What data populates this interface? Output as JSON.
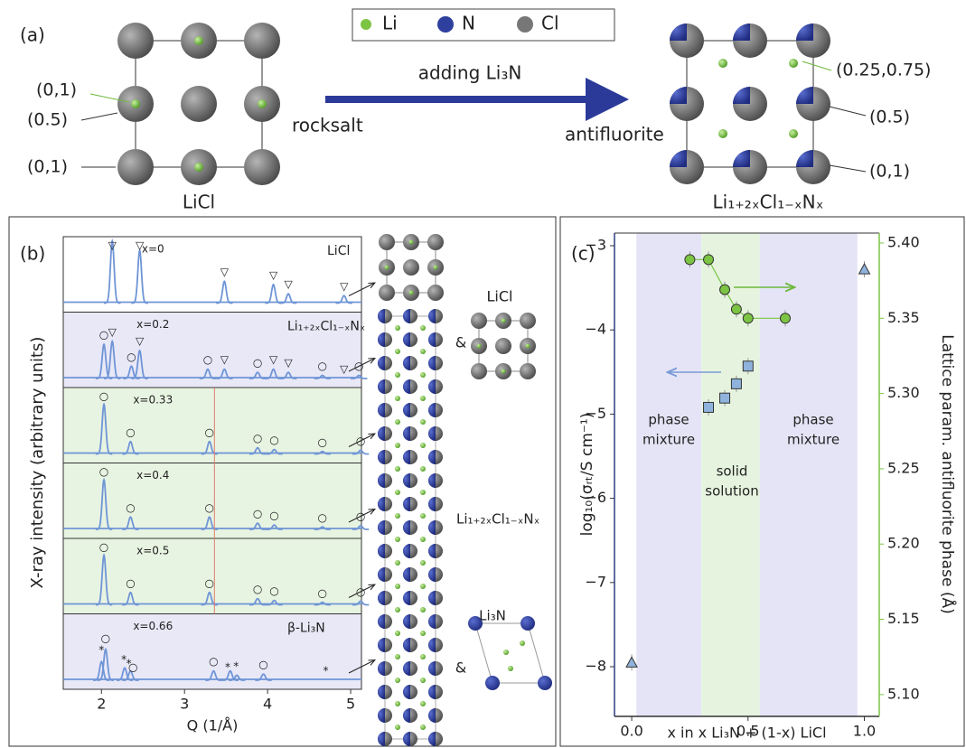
{
  "panel_labels": [
    "(a)",
    "(b)",
    "(c)"
  ],
  "diagram": {
    "legend": [
      {
        "name": "Li",
        "color": "#7cc444"
      },
      {
        "name": "N",
        "color": "#2e3f9e"
      },
      {
        "name": "Cl",
        "color": "#777777"
      }
    ],
    "arrow_label": "adding Li₃N",
    "left": {
      "phase": "rocksalt",
      "name": "LiCl",
      "site_labels": [
        "(0,1)",
        "(0.5)",
        "(0,1)"
      ]
    },
    "right": {
      "phase": "antifluorite",
      "name": "Li₁₊₂ₓCl₁₋ₓNₓ",
      "site_labels": [
        "(0.25,0.75)",
        "(0.5)",
        "(0,1)"
      ]
    },
    "structure_labels": [
      "LiCl",
      "&",
      "Li₁₊₂ₓCl₁₋ₓNₓ",
      "Li₃N",
      "&"
    ]
  },
  "chart_data": [
    {
      "type": "xrd",
      "x_label": "Q (1/Å)",
      "y_label": "X-ray intensity (arbitrary units)",
      "xlim": [
        1.54,
        5.13
      ],
      "xticks": [
        2,
        3,
        4,
        5
      ],
      "ylim": [
        0,
        1.1
      ],
      "color": "#6f95d6",
      "ref_line": 3.36,
      "ref_color": "#e07b6a",
      "panels": [
        {
          "label": "x=0",
          "phase": "LiCl",
          "background": "#ffffff",
          "peaks": {
            "q": [
              2.13,
              2.46,
              3.48,
              4.07,
              4.25,
              4.92
            ],
            "heights": [
              1.0,
              0.85,
              0.35,
              0.3,
              0.15,
              0.12
            ]
          },
          "markers": {
            "q": [
              2.13,
              2.46,
              3.48,
              4.07,
              4.25,
              4.92
            ],
            "symbols": [
              "▽",
              "▽",
              "▽",
              "▽",
              "▽",
              "▽"
            ]
          }
        },
        {
          "label": "x=0.2",
          "phase": "Li₁₊₂ₓCl₁₋ₓNₓ",
          "background": "#e8e8f7",
          "peaks": {
            "q": [
              2.03,
              2.13,
              2.36,
              2.46,
              3.28,
              3.48,
              3.88,
              4.07,
              4.25,
              4.66,
              5.1
            ],
            "heights": [
              0.55,
              0.6,
              0.2,
              0.45,
              0.15,
              0.15,
              0.1,
              0.15,
              0.1,
              0.05,
              0.05
            ]
          },
          "markers": {
            "q": [
              2.03,
              2.13,
              2.36,
              2.46,
              3.28,
              3.48,
              3.88,
              4.07,
              4.25,
              4.66,
              4.92,
              5.1
            ],
            "symbols": [
              "○",
              "▽",
              "○",
              "▽",
              "○",
              "▽",
              "○",
              "▽",
              "▽",
              "○",
              "▽",
              "○"
            ]
          }
        },
        {
          "label": "x=0.33",
          "background": "#e8f4e2",
          "peaks": {
            "q": [
              2.03,
              2.35,
              3.3,
              3.88,
              4.08,
              4.66,
              5.12
            ],
            "heights": [
              0.8,
              0.2,
              0.2,
              0.1,
              0.07,
              0.04,
              0.06
            ]
          },
          "markers": {
            "q": [
              2.03,
              2.35,
              3.3,
              3.88,
              4.08,
              4.66,
              5.12
            ],
            "symbols": [
              "○",
              "○",
              "○",
              "○",
              "○",
              "○",
              "○"
            ]
          }
        },
        {
          "label": "x=0.4",
          "background": "#e8f4e2",
          "peaks": {
            "q": [
              2.03,
              2.35,
              3.3,
              3.88,
              4.08,
              4.66,
              5.12
            ],
            "heights": [
              0.8,
              0.2,
              0.2,
              0.1,
              0.07,
              0.04,
              0.06
            ]
          },
          "markers": {
            "q": [
              2.03,
              2.35,
              3.3,
              3.88,
              4.08,
              4.66,
              5.12
            ],
            "symbols": [
              "○",
              "○",
              "○",
              "○",
              "○",
              "○",
              "○"
            ]
          }
        },
        {
          "label": "x=0.5",
          "background": "#e8f4e2",
          "peaks": {
            "q": [
              2.03,
              2.35,
              3.3,
              3.88,
              4.08,
              4.66,
              5.12
            ],
            "heights": [
              0.8,
              0.2,
              0.2,
              0.1,
              0.07,
              0.04,
              0.06
            ]
          },
          "markers": {
            "q": [
              2.03,
              2.35,
              3.3,
              3.88,
              4.08,
              4.66,
              5.12
            ],
            "symbols": [
              "○",
              "○",
              "○",
              "○",
              "○",
              "○",
              "○"
            ]
          }
        },
        {
          "label": "x=0.66",
          "phase": "β-Li₃N",
          "background": "#e8e8f7",
          "peaks": {
            "q": [
              2.0,
              2.05,
              2.28,
              2.35,
              3.35,
              3.55,
              3.63,
              3.95
            ],
            "heights": [
              0.3,
              0.5,
              0.2,
              0.15,
              0.15,
              0.15,
              0.08,
              0.1
            ]
          },
          "markers": {
            "q": [
              2.0,
              2.05,
              2.27,
              2.33,
              2.38,
              3.35,
              3.52,
              3.62,
              3.95,
              4.7
            ],
            "symbols": [
              "*",
              "○",
              "*",
              "*",
              "○",
              "○",
              "*",
              "*",
              "○",
              "*"
            ]
          }
        }
      ]
    },
    {
      "type": "scatter",
      "x_label": "x in x Li₃N + (1-x) LiCl",
      "y_label": "log₁₀(σᵣₜ/S cm⁻¹)",
      "y2_label": "Lattice param. antifluorite phase (Å)",
      "xlim": [
        -0.074,
        1.064
      ],
      "xticks": [
        {
          "value": 0,
          "label": "0.0"
        },
        {
          "value": 0.5,
          "label": "0.5"
        },
        {
          "value": 1,
          "label": "1.0"
        }
      ],
      "ylim": [
        -8.59,
        -2.85
      ],
      "yticks": [
        {
          "value": -3,
          "label": "−3"
        },
        {
          "value": -4,
          "label": "−4"
        },
        {
          "value": -5,
          "label": "−5"
        },
        {
          "value": -6,
          "label": "−6"
        },
        {
          "value": -7,
          "label": "−7"
        },
        {
          "value": -8,
          "label": "−8"
        }
      ],
      "y2lim": [
        5.0855,
        5.4066
      ],
      "y2ticks": [
        {
          "value": 5.1,
          "label": "5.10"
        },
        {
          "value": 5.15,
          "label": "5.15"
        },
        {
          "value": 5.2,
          "label": "5.20"
        },
        {
          "value": 5.25,
          "label": "5.25"
        },
        {
          "value": 5.3,
          "label": "5.30"
        },
        {
          "value": 5.35,
          "label": "5.35"
        },
        {
          "value": 5.4,
          "label": "5.40"
        }
      ],
      "y2_color": "#7cc444",
      "regions": [
        {
          "x": [
            0.02,
            0.3
          ],
          "color": "#e4e4f6"
        },
        {
          "x": [
            0.3,
            0.55
          ],
          "color": "#e6f4df"
        },
        {
          "x": [
            0.55,
            0.97
          ],
          "color": "#e4e4f6"
        }
      ],
      "series": [
        {
          "marker": "square",
          "color": "#8fb3dc",
          "x": [
            0.33,
            0.4,
            0.45,
            0.5
          ],
          "values": [
            -4.92,
            -4.81,
            -4.64,
            -4.43
          ]
        },
        {
          "marker": "triangle",
          "color": "#8fb3dc",
          "x": [
            0,
            1
          ],
          "values": [
            -7.95,
            -3.28
          ]
        },
        {
          "marker": "circle",
          "color": "#7cc444",
          "axis": "y2",
          "x": [
            0.25,
            0.33,
            0.4,
            0.45,
            0.5,
            0.66
          ],
          "values": [
            5.389,
            5.389,
            5.369,
            5.356,
            5.35,
            5.35
          ]
        }
      ],
      "annotations": [
        [
          "phase",
          "mixture"
        ],
        [
          "solid",
          "solution"
        ],
        [
          "phase",
          "mixture"
        ]
      ]
    }
  ]
}
